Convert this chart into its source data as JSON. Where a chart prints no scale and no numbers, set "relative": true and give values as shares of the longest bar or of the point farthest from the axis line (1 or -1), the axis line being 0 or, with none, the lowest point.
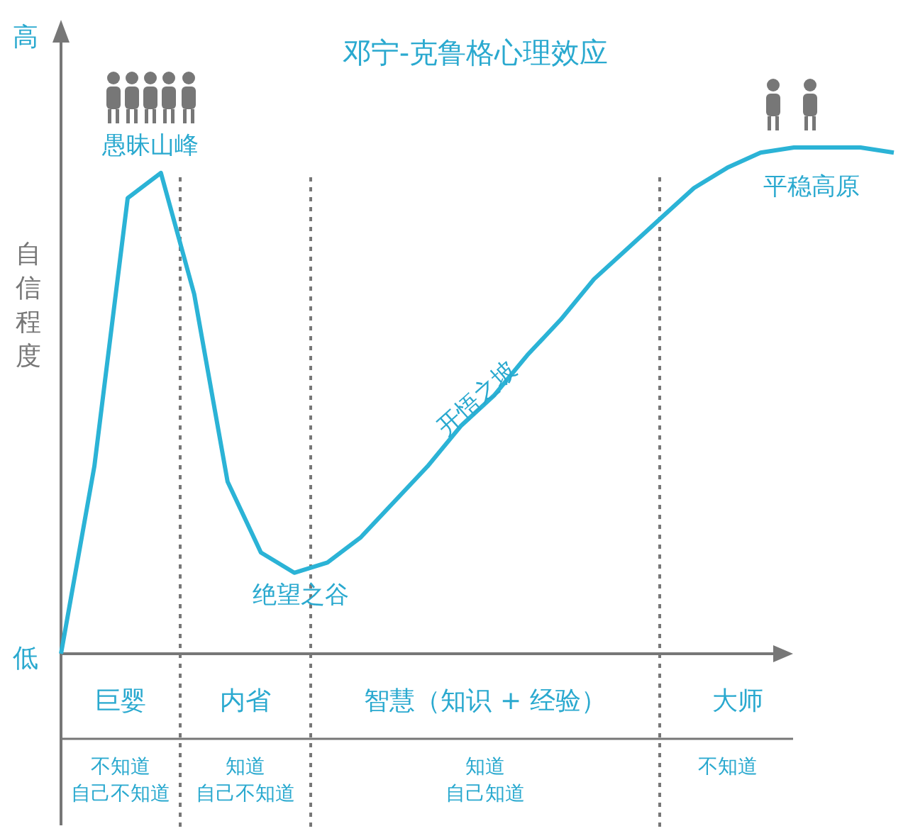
{
  "chart_data": {
    "type": "line",
    "relative": true,
    "title": "邓宁-克鲁格心理效应",
    "ylabel": "自信程度",
    "categories": [
      null,
      null,
      null,
      null,
      null,
      null,
      null,
      null,
      null,
      null,
      null,
      null,
      null,
      null,
      null,
      null,
      null,
      null,
      null,
      null,
      null,
      null,
      null,
      null,
      null,
      null
    ],
    "series": [
      {
        "color": "#2bb3d6",
        "line_style": "solid",
        "values": [
          0,
          0.37,
          0.9,
          0.95,
          0.71,
          0.34,
          0.2,
          0.16,
          0.18,
          0.23,
          0.3,
          0.37,
          0.45,
          0.51,
          0.59,
          0.66,
          0.74,
          0.8,
          0.86,
          0.92,
          0.96,
          0.99,
          1.0,
          1.0,
          1.0,
          0.99
        ]
      }
    ],
    "annotations": [
      "高",
      "低",
      "愚昧山峰",
      "绝望之谷",
      "开悟之坡",
      "平稳高原",
      "巨婴",
      "内省",
      "智慧（知识 + 经验）",
      "大师",
      "不知道",
      "自己不知道",
      "知道",
      "自己不知道",
      "知道",
      "自己知道",
      "不知道"
    ]
  }
}
